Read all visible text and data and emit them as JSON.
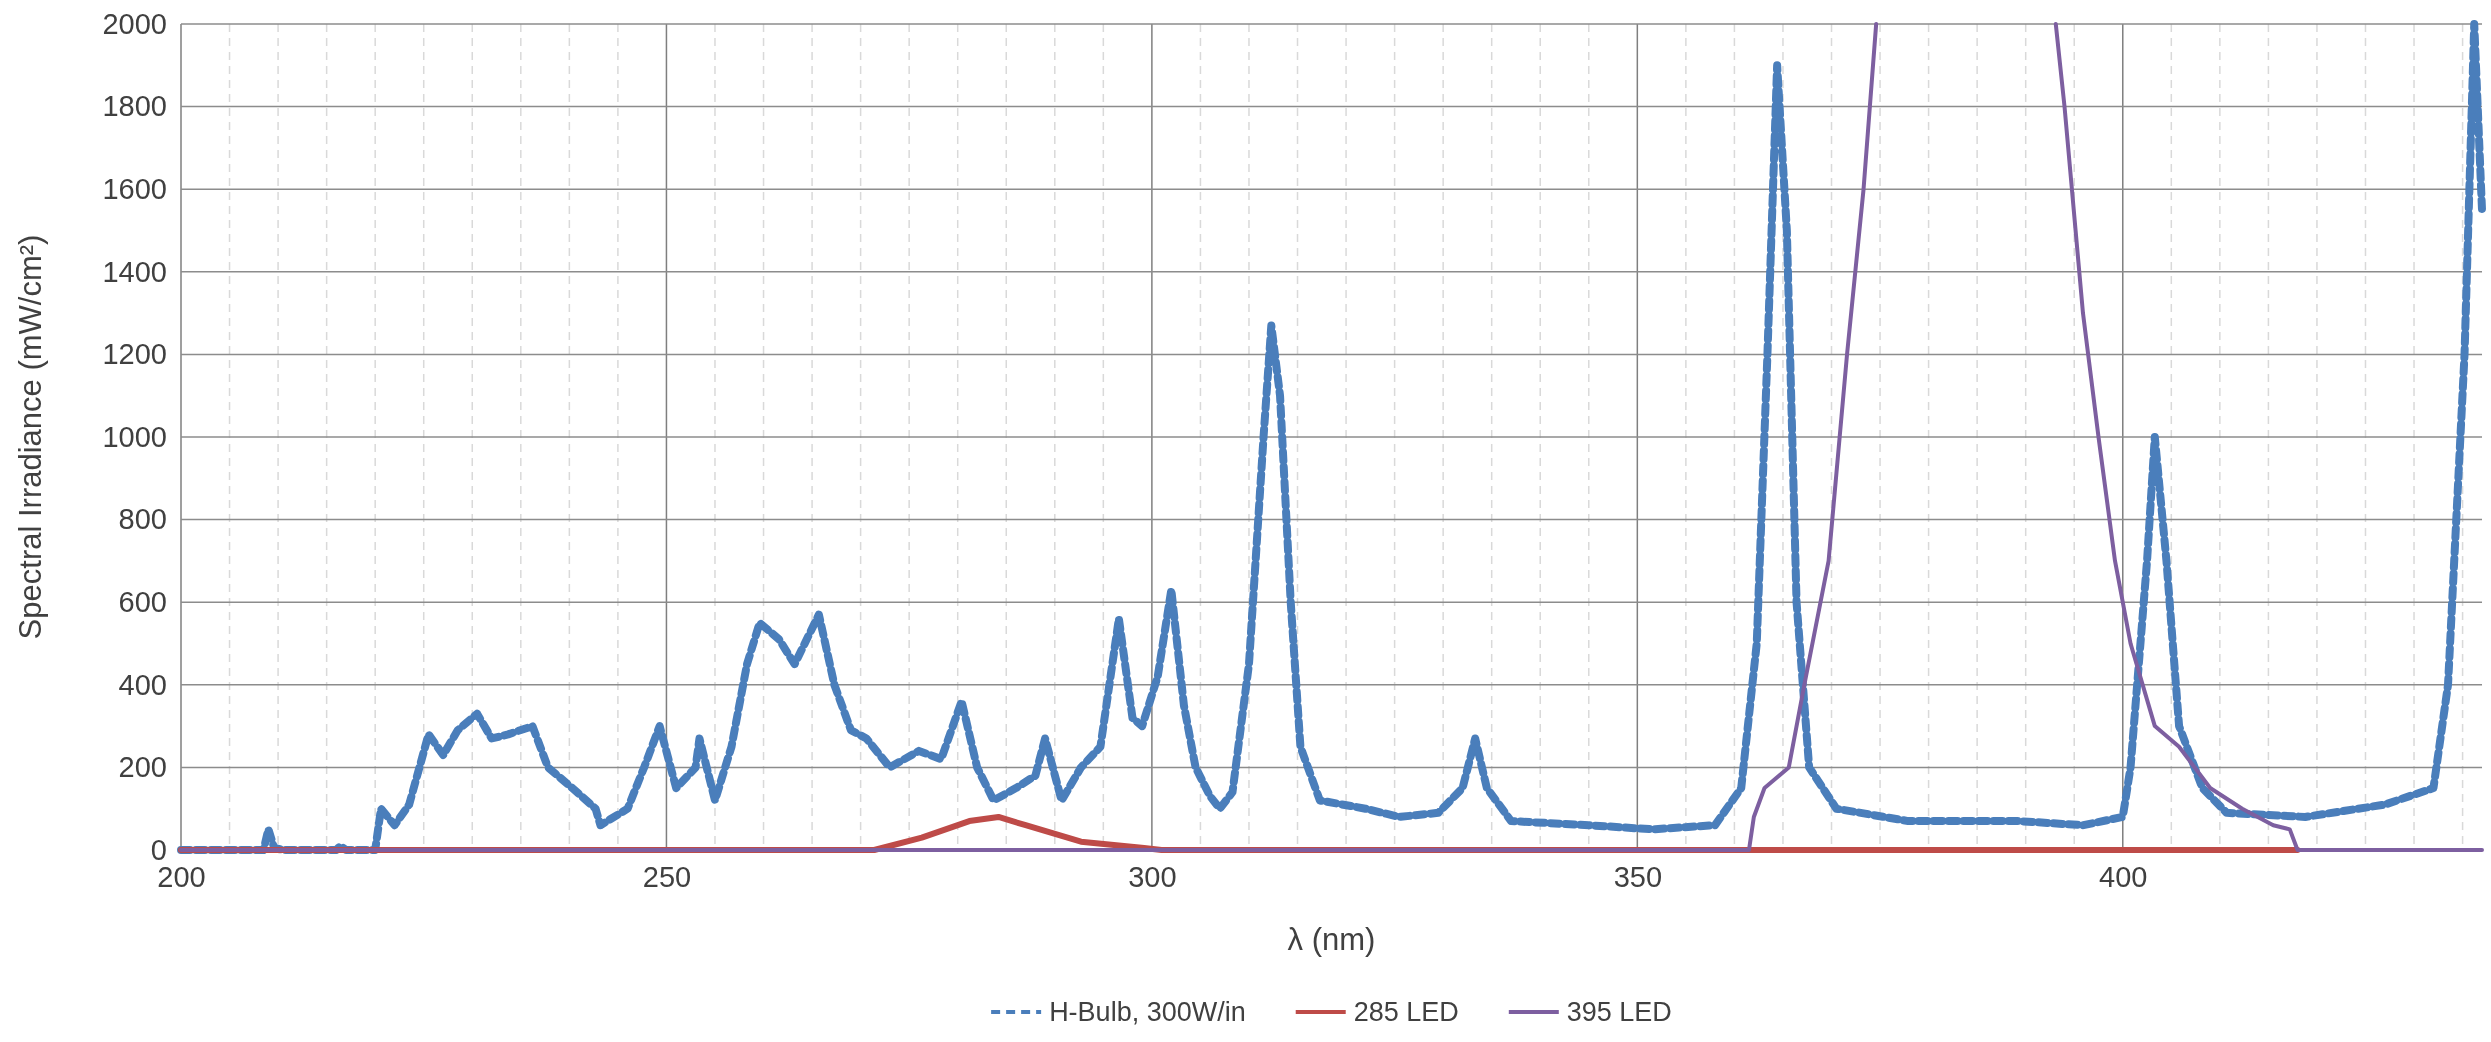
{
  "chart_data": {
    "type": "line",
    "xlabel": "λ (nm)",
    "ylabel": "Spectral Irradiance (mW/cm²)",
    "xlim": [
      200,
      437
    ],
    "ylim": [
      0,
      2000
    ],
    "xticks": [
      200,
      {
        "value": 205,
        "label": null
      },
      {
        "value": 210,
        "label": null
      },
      {
        "value": 215,
        "label": null
      },
      {
        "value": 220,
        "label": null
      },
      {
        "value": 225,
        "label": null
      },
      {
        "value": 230,
        "label": null
      },
      {
        "value": 235,
        "label": null
      },
      {
        "value": 240,
        "label": null
      },
      {
        "value": 245,
        "label": null
      },
      250,
      {
        "value": 255,
        "label": null
      },
      {
        "value": 260,
        "label": null
      },
      {
        "value": 265,
        "label": null
      },
      {
        "value": 270,
        "label": null
      },
      {
        "value": 275,
        "label": null
      },
      {
        "value": 280,
        "label": null
      },
      {
        "value": 285,
        "label": null
      },
      {
        "value": 290,
        "label": null
      },
      {
        "value": 295,
        "label": null
      },
      300,
      {
        "value": 305,
        "label": null
      },
      {
        "value": 310,
        "label": null
      },
      {
        "value": 315,
        "label": null
      },
      {
        "value": 320,
        "label": null
      },
      {
        "value": 325,
        "label": null
      },
      {
        "value": 330,
        "label": null
      },
      {
        "value": 335,
        "label": null
      },
      {
        "value": 340,
        "label": null
      },
      {
        "value": 345,
        "label": null
      },
      350,
      {
        "value": 355,
        "label": null
      },
      {
        "value": 360,
        "label": null
      },
      {
        "value": 365,
        "label": null
      },
      {
        "value": 370,
        "label": null
      },
      {
        "value": 375,
        "label": null
      },
      {
        "value": 380,
        "label": null
      },
      {
        "value": 385,
        "label": null
      },
      {
        "value": 390,
        "label": null
      },
      {
        "value": 395,
        "label": null
      },
      400,
      {
        "value": 405,
        "label": null
      },
      {
        "value": 410,
        "label": null
      },
      {
        "value": 415,
        "label": null
      },
      {
        "value": 420,
        "label": null
      },
      {
        "value": 425,
        "label": null
      },
      {
        "value": 430,
        "label": null
      },
      {
        "value": 435,
        "label": null
      }
    ],
    "yticks": [
      0,
      200,
      400,
      600,
      800,
      1000,
      1200,
      1400,
      1600,
      1800,
      2000
    ],
    "grid": true,
    "legend": "bottom",
    "marker": "none",
    "series": [
      {
        "name": "H-Bulb, 300W/in",
        "color": "#4a7ebb",
        "line_style": "dashed",
        "x": [
          200,
          208.5,
          209,
          209.6,
          210.5,
          216,
          216.4,
          217,
          220,
          220.6,
          222,
          223.5,
          225.5,
          227,
          228.5,
          230.5,
          232,
          233.7,
          236.2,
          237.8,
          240.3,
          242.7,
          243.2,
          246,
          247.7,
          249.3,
          251,
          253,
          253.4,
          255,
          256.7,
          258.3,
          259.6,
          261.6,
          263.2,
          265.7,
          267.3,
          269,
          270.6,
          273,
          276,
          278.3,
          280.4,
          282,
          283.7,
          286,
          288,
          289,
          290.7,
          292.7,
          294.7,
          296.6,
          298,
          299,
          300.6,
          302,
          303.3,
          304.5,
          306,
          307,
          308.3,
          310,
          311.5,
          312.3,
          313.2,
          314.3,
          315.3,
          317.3,
          322,
          325.5,
          329.5,
          332,
          333.3,
          334.5,
          337,
          345,
          351.6,
          358,
          360.7,
          362.3,
          363.4,
          364.4,
          365.4,
          366.4,
          367.7,
          370.5,
          377.9,
          389.3,
          395.9,
          400,
          400.8,
          402.5,
          403.3,
          404.5,
          405.8,
          408.2,
          410.7,
          418.8,
          427,
          432,
          433.5,
          435.2,
          436.2,
          437
        ],
        "values": [
          0,
          0,
          50,
          5,
          0,
          0,
          10,
          0,
          0,
          100,
          60,
          110,
          280,
          230,
          290,
          330,
          270,
          280,
          300,
          200,
          150,
          100,
          60,
          100,
          200,
          300,
          150,
          200,
          270,
          120,
          250,
          450,
          550,
          510,
          450,
          570,
          400,
          290,
          270,
          200,
          240,
          220,
          360,
          200,
          120,
          150,
          180,
          270,
          120,
          200,
          250,
          560,
          320,
          300,
          420,
          630,
          350,
          200,
          130,
          100,
          140,
          450,
          1000,
          1270,
          1100,
          600,
          250,
          120,
          100,
          80,
          90,
          150,
          270,
          150,
          70,
          60,
          50,
          60,
          150,
          500,
          1200,
          1900,
          1500,
          600,
          200,
          100,
          70,
          70,
          60,
          80,
          200,
          700,
          1000,
          700,
          300,
          150,
          90,
          80,
          110,
          150,
          400,
          1200,
          2000,
          1550
        ]
      },
      {
        "name": "285 LED",
        "color": "#be4b48",
        "line_style": "solid",
        "x": [
          200,
          271.4,
          276.3,
          281.2,
          284.2,
          287,
          292.7,
          299.2,
          301,
          418
        ],
        "values": [
          0,
          0,
          30,
          70,
          80,
          60,
          20,
          5,
          0,
          0
        ]
      },
      {
        "name": "395 LED",
        "color": "#7d5fa0",
        "line_style": "solid",
        "x": [
          200,
          361.5,
          362,
          363.1,
          365.6,
          367.2,
          369.7,
          371.6,
          373.3,
          374.6,
          384,
          393.1,
          394,
          395.9,
          397.5,
          399.2,
          400.8,
          403.3,
          405.8,
          409,
          412.3,
          415.5,
          417.2,
          418,
          437
        ],
        "values": [
          0,
          0,
          80,
          150,
          200,
          400,
          700,
          1200,
          1600,
          2000,
          null,
          2000,
          1800,
          1300,
          1000,
          700,
          500,
          300,
          250,
          150,
          100,
          60,
          50,
          0,
          0
        ]
      }
    ]
  }
}
